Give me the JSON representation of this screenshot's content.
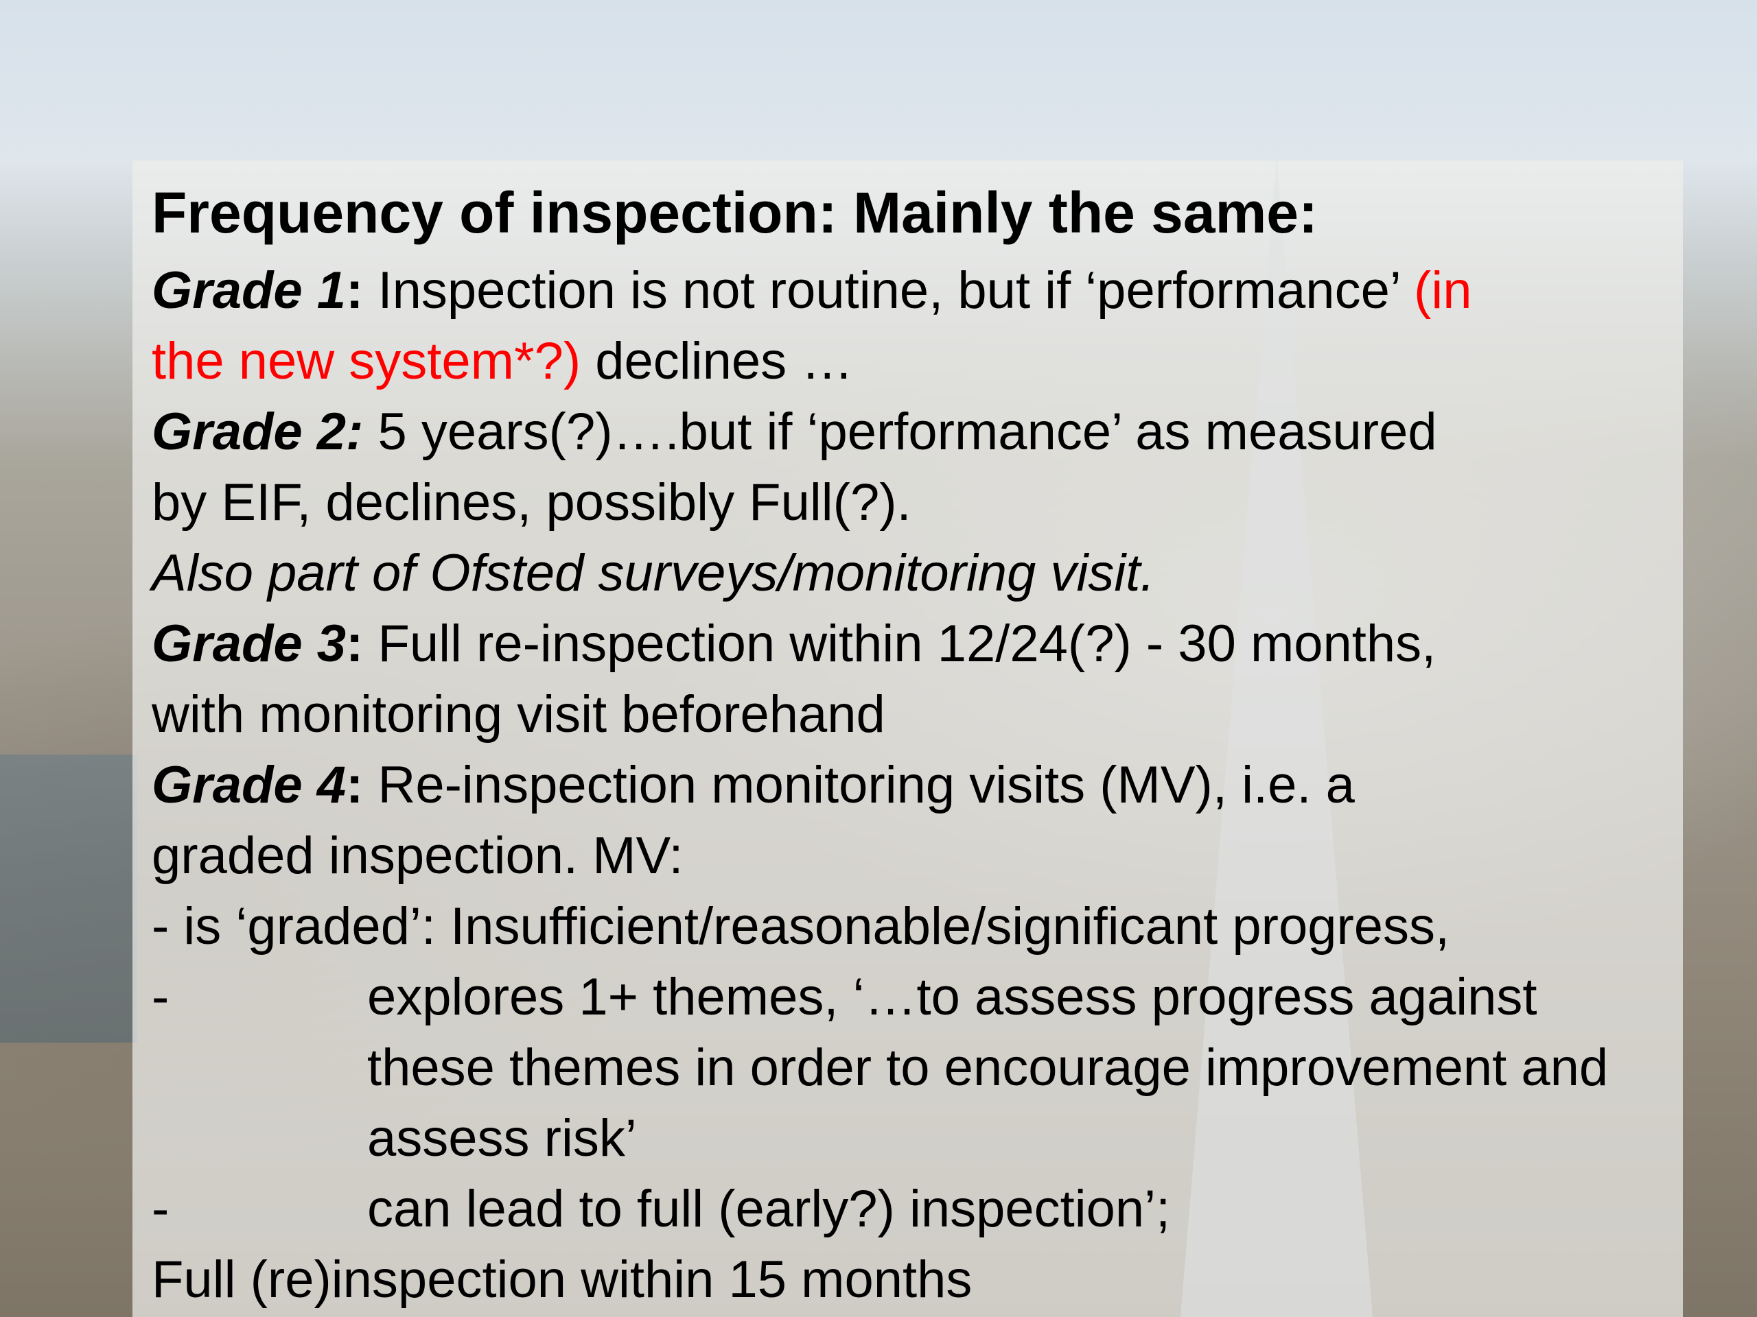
{
  "slide": {
    "title": "Frequency of inspection: Mainly the same:",
    "accent_color": "#ff0000",
    "grade1": {
      "label": "Grade 1",
      "colon": ":",
      "text": " Inspection is not routine, but if ‘performance’ ",
      "red_a": "(in",
      "red_b": "the new system*?)",
      "text2": " declines …"
    },
    "grade2": {
      "label": "Grade 2:",
      "text": " 5 years(?)….but if ‘performance’ as measured",
      "text2": "by EIF, declines, possibly Full(?).",
      "note": "Also part of Ofsted surveys/monitoring visit."
    },
    "grade3": {
      "label": "Grade 3",
      "colon": ":",
      "text": " Full re-inspection within 12/24(?) - 30 months,",
      "text2": "with monitoring visit beforehand"
    },
    "grade4": {
      "label": "Grade 4",
      "colon": ":",
      "text": " Re-inspection monitoring visits (MV), i.e. a",
      "text2": "graded inspection. MV:"
    },
    "bullets": {
      "b1": "- is ‘graded’: Insufficient/reasonable/significant progress,",
      "dash": "-",
      "b2a": "explores 1+ themes, ‘…to assess progress against",
      "b2b": "these themes in order to encourage improvement and",
      "b2c": "assess risk’",
      "b3": "can lead to full (early?) inspection’;"
    },
    "footer": "Full (re)inspection within 15 months"
  }
}
